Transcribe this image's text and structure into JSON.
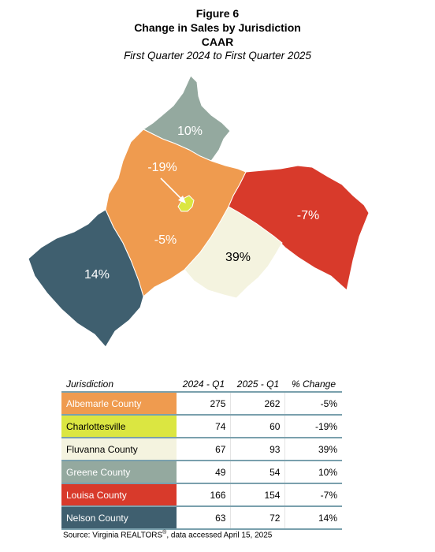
{
  "header": {
    "figure": "Figure 6",
    "title": "Change in Sales by Jurisdiction",
    "org": "CAAR",
    "subtitle": "First Quarter 2024 to First Quarter 2025"
  },
  "map": {
    "regions": [
      {
        "name": "Greene County",
        "label": "10%",
        "color": "#94a99f"
      },
      {
        "name": "Albemarle County",
        "label": "-5%",
        "color": "#ef9b4f"
      },
      {
        "name": "Charlottesville",
        "label": "-19%",
        "color": "#dbe641"
      },
      {
        "name": "Louisa County",
        "label": "-7%",
        "color": "#d83a2b"
      },
      {
        "name": "Fluvanna County",
        "label": "39%",
        "color": "#f4f3df"
      },
      {
        "name": "Nelson County",
        "label": "14%",
        "color": "#3f5f6f"
      }
    ]
  },
  "table": {
    "headers": [
      "Jurisdiction",
      "2024 - Q1",
      "2025 - Q1",
      "% Change"
    ],
    "rows": [
      {
        "name": "Albemarle County",
        "q1_2024": "275",
        "q1_2025": "262",
        "change": "-5%",
        "color": "#ef9b4f",
        "text_color": "#ffffff"
      },
      {
        "name": "Charlottesville",
        "q1_2024": "74",
        "q1_2025": "60",
        "change": "-19%",
        "color": "#dbe641",
        "text_color": "#000000"
      },
      {
        "name": "Fluvanna County",
        "q1_2024": "67",
        "q1_2025": "93",
        "change": "39%",
        "color": "#f4f3df",
        "text_color": "#000000"
      },
      {
        "name": "Greene County",
        "q1_2024": "49",
        "q1_2025": "54",
        "change": "10%",
        "color": "#94a99f",
        "text_color": "#ffffff"
      },
      {
        "name": "Louisa County",
        "q1_2024": "166",
        "q1_2025": "154",
        "change": "-7%",
        "color": "#d83a2b",
        "text_color": "#ffffff"
      },
      {
        "name": "Nelson County",
        "q1_2024": "63",
        "q1_2025": "72",
        "change": "14%",
        "color": "#3f5f6f",
        "text_color": "#ffffff"
      }
    ]
  },
  "source": {
    "prefix": "Source: Virginia REALTORS",
    "sup": "®",
    "suffix": ", data accessed April 15, 2025"
  }
}
